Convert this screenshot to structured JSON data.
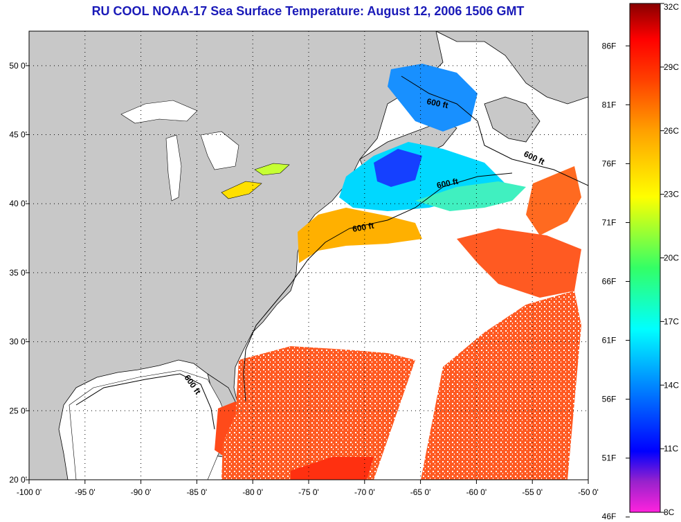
{
  "title": "RU COOL  NOAA-17  Sea Surface Temperature:  August 12, 2006 1506 GMT",
  "map": {
    "lon_range": [
      -100,
      -50
    ],
    "lat_range": [
      20,
      52.5
    ],
    "lon_ticks": [
      {
        "value": -100,
        "label": "-100 0'"
      },
      {
        "value": -95,
        "label": "-95 0'"
      },
      {
        "value": -90,
        "label": "-90 0'"
      },
      {
        "value": -85,
        "label": "-85 0'"
      },
      {
        "value": -80,
        "label": "-80 0'"
      },
      {
        "value": -75,
        "label": "-75 0'"
      },
      {
        "value": -70,
        "label": "-70 0'"
      },
      {
        "value": -65,
        "label": "-65 0'"
      },
      {
        "value": -60,
        "label": "-60 0'"
      },
      {
        "value": -55,
        "label": "-55 0'"
      },
      {
        "value": -50,
        "label": "-50 0'"
      }
    ],
    "lat_ticks": [
      {
        "value": 20,
        "label": "20 0'"
      },
      {
        "value": 25,
        "label": "25 0'"
      },
      {
        "value": 30,
        "label": "30 0'"
      },
      {
        "value": 35,
        "label": "35 0'"
      },
      {
        "value": 40,
        "label": "40 0'"
      },
      {
        "value": 45,
        "label": "45 0'"
      },
      {
        "value": 50,
        "label": "50 0'"
      }
    ],
    "contour_labels": [
      "600 ft",
      "600 ft",
      "600 ft",
      "600 ft",
      "600 ft"
    ],
    "colors": {
      "land": "#c8c8c8",
      "cloud": "#ffffff",
      "grid": "#000000"
    }
  },
  "colorbar": {
    "range_c": [
      8,
      32
    ],
    "celsius_labels": [
      {
        "value": 32,
        "label": "32C"
      },
      {
        "value": 29,
        "label": "29C"
      },
      {
        "value": 26,
        "label": "26C"
      },
      {
        "value": 23,
        "label": "23C"
      },
      {
        "value": 20,
        "label": "20C"
      },
      {
        "value": 17,
        "label": "17C"
      },
      {
        "value": 14,
        "label": "14C"
      },
      {
        "value": 11,
        "label": "11C"
      },
      {
        "value": 8,
        "label": "8C"
      }
    ],
    "fahrenheit_labels": [
      {
        "value": 86,
        "label": "86F"
      },
      {
        "value": 81,
        "label": "81F"
      },
      {
        "value": 76,
        "label": "76F"
      },
      {
        "value": 71,
        "label": "71F"
      },
      {
        "value": 66,
        "label": "66F"
      },
      {
        "value": 61,
        "label": "61F"
      },
      {
        "value": 56,
        "label": "56F"
      },
      {
        "value": 51,
        "label": "51F"
      },
      {
        "value": 46,
        "label": "46F"
      }
    ],
    "colors": [
      "#ff22dd",
      "#7722cc",
      "#0000ff",
      "#0066ff",
      "#00ccff",
      "#00ffcc",
      "#66ff33",
      "#ffff00",
      "#ffaa00",
      "#ff5500",
      "#ff0000",
      "#880000"
    ]
  }
}
